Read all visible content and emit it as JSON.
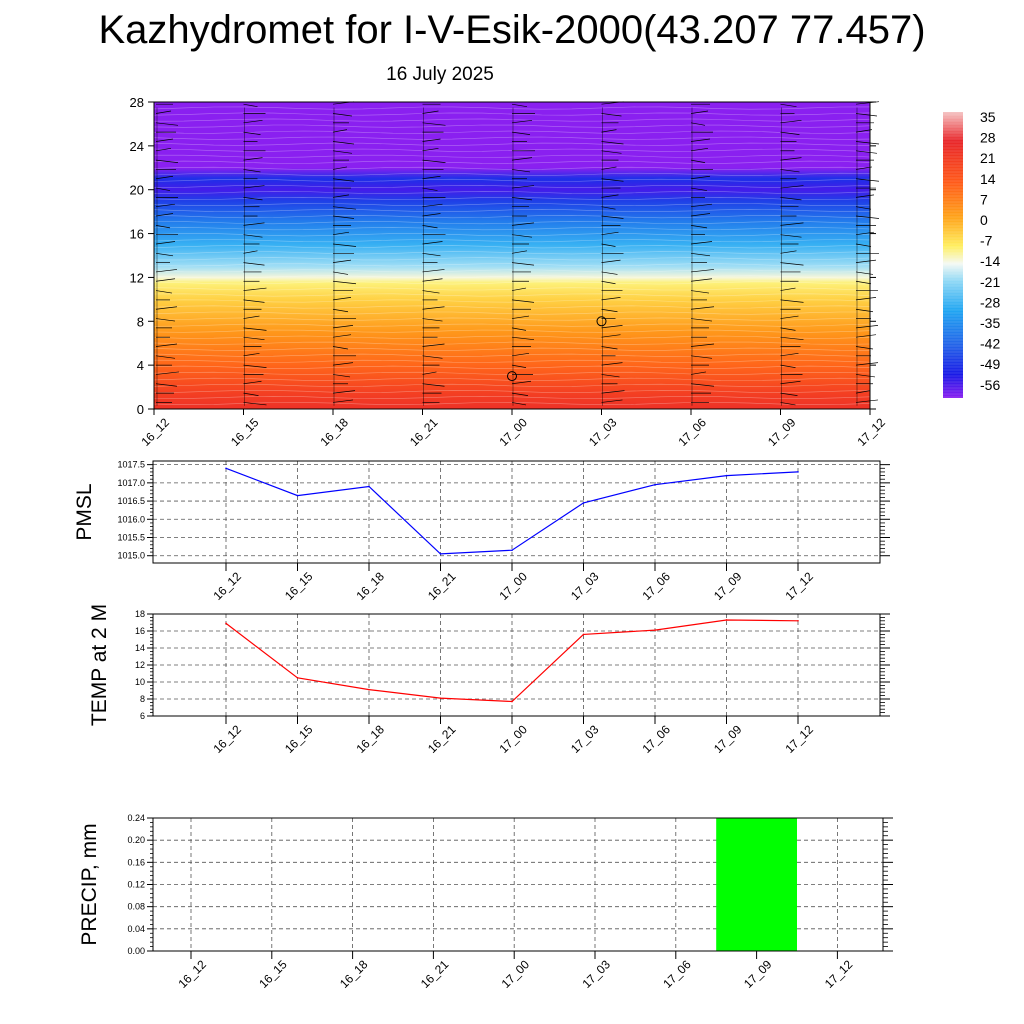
{
  "title": "Kazhydromet for I-V-Esik-2000(43.207 77.457)",
  "date_label": "16 July 2025",
  "time_labels": [
    "16_12",
    "16_15",
    "16_18",
    "16_21",
    "17_00",
    "17_03",
    "17_06",
    "17_09",
    "17_12"
  ],
  "colors": {
    "pmsl_line": "#0000ff",
    "temp_line": "#ff0000",
    "precip_bar": "#00ff00",
    "grid": "#555555"
  },
  "chart_data": [
    {
      "type": "heatmap",
      "name": "temperature-cross-section",
      "x": [
        "16_12",
        "16_15",
        "16_18",
        "16_21",
        "17_00",
        "17_03",
        "17_06",
        "17_09",
        "17_12"
      ],
      "ylim": [
        0,
        28
      ],
      "yticks": [
        "0",
        "4",
        "8",
        "12",
        "16",
        "20",
        "24",
        "28"
      ],
      "colorbar": {
        "labels": [
          "35",
          "28",
          "21",
          "14",
          "7",
          "0",
          "-7",
          "-14",
          "-21",
          "-28",
          "-35",
          "-42",
          "-49",
          "-56"
        ],
        "stops": [
          {
            "value": 38,
            "color": "#f5c4c4"
          },
          {
            "value": 28,
            "color": "#e8262a"
          },
          {
            "value": 14,
            "color": "#ff5a1a"
          },
          {
            "value": 2,
            "color": "#ffa31a"
          },
          {
            "value": -8,
            "color": "#ffef60"
          },
          {
            "value": -14,
            "color": "#f4f9f4"
          },
          {
            "value": -20,
            "color": "#8fd8f5"
          },
          {
            "value": -30,
            "color": "#21a6f2"
          },
          {
            "value": -42,
            "color": "#2463e8"
          },
          {
            "value": -52,
            "color": "#1a1ae6"
          },
          {
            "value": -60,
            "color": "#8a20f0"
          }
        ]
      },
      "profile": [
        {
          "height": 0,
          "value": 25
        },
        {
          "height": 1.5,
          "value": 21
        },
        {
          "height": 4,
          "value": 12
        },
        {
          "height": 7,
          "value": 4
        },
        {
          "height": 10,
          "value": -4
        },
        {
          "height": 11.5,
          "value": -9
        },
        {
          "height": 12,
          "value": -13
        },
        {
          "height": 13,
          "value": -19
        },
        {
          "height": 15,
          "value": -28
        },
        {
          "height": 17,
          "value": -37
        },
        {
          "height": 19,
          "value": -47
        },
        {
          "height": 20,
          "value": -55
        },
        {
          "height": 21,
          "value": -49
        },
        {
          "height": 22,
          "value": -60
        },
        {
          "height": 28,
          "value": -60
        }
      ]
    },
    {
      "type": "line",
      "ylabel": "PMSL",
      "categories": [
        "16_12",
        "16_15",
        "16_18",
        "16_21",
        "17_00",
        "17_03",
        "17_06",
        "17_09",
        "17_12"
      ],
      "series": [
        {
          "values": [
            1017.4,
            1016.65,
            1016.9,
            1015.05,
            1015.15,
            1016.45,
            1016.95,
            1017.2,
            1017.3
          ]
        }
      ],
      "ylim": [
        1014.8,
        1017.6
      ],
      "yticks": [
        "1015.0",
        "1015.5",
        "1016.0",
        "1016.5",
        "1017.0",
        "1017.5"
      ],
      "grid": true
    },
    {
      "type": "line",
      "ylabel": "TEMP at 2 M",
      "categories": [
        "16_12",
        "16_15",
        "16_18",
        "16_21",
        "17_00",
        "17_03",
        "17_06",
        "17_09",
        "17_12"
      ],
      "series": [
        {
          "values": [
            16.9,
            10.5,
            9.1,
            8.1,
            7.7,
            15.6,
            16.1,
            17.3,
            17.2
          ]
        }
      ],
      "ylim": [
        6,
        18
      ],
      "yticks": [
        "6",
        "8",
        "10",
        "12",
        "14",
        "16",
        "18"
      ],
      "grid": true
    },
    {
      "type": "bar",
      "ylabel": "PRECIP, mm",
      "categories": [
        "16_12",
        "16_15",
        "16_18",
        "16_21",
        "17_00",
        "17_03",
        "17_06",
        "17_09",
        "17_12"
      ],
      "series": [
        {
          "values": [
            0,
            0,
            0,
            0,
            0,
            0,
            0,
            0.24,
            0
          ]
        }
      ],
      "ylim": [
        0,
        0.24
      ],
      "yticks": [
        "0.00",
        "0.04",
        "0.08",
        "0.12",
        "0.16",
        "0.20",
        "0.24"
      ],
      "grid": true
    }
  ]
}
